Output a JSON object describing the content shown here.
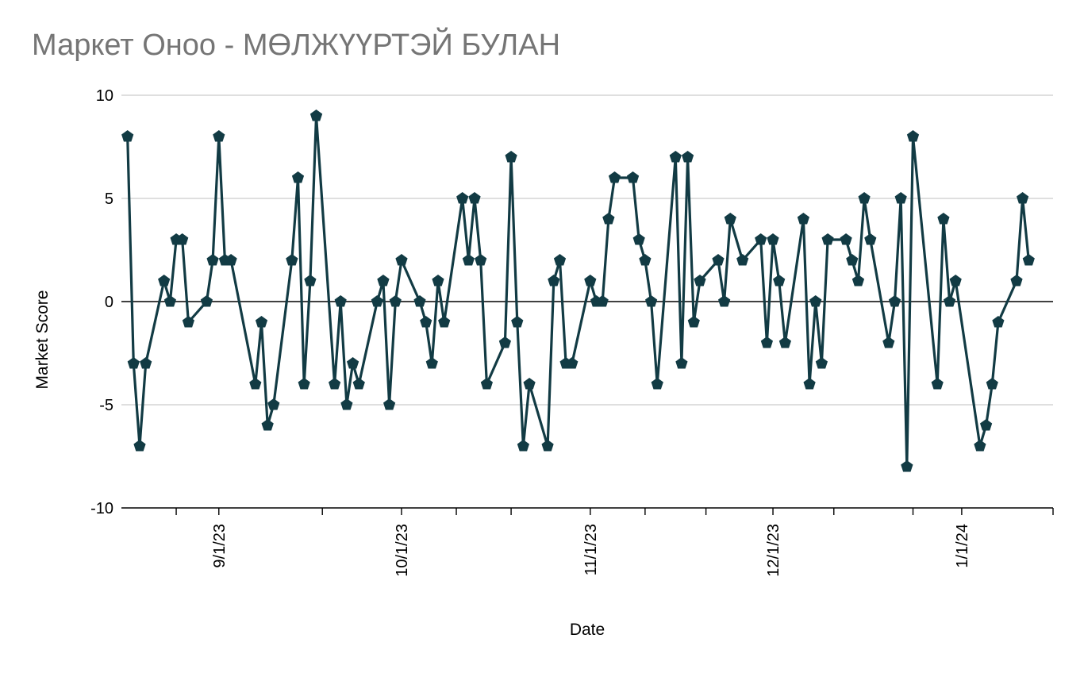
{
  "chart_data": {
    "type": "line",
    "title": "Маркет Оноо - МӨЛЖҮҮРТЭЙ БУЛАН",
    "xlabel": "Date",
    "ylabel": "Market Score",
    "ylim": [
      -10,
      10
    ],
    "yticks": [
      10,
      5,
      0,
      -5,
      -10
    ],
    "xlim": [
      "2023-08-16",
      "2024-01-16"
    ],
    "xticks": [
      {
        "date": "2023-09-01",
        "label": "9/1/23"
      },
      {
        "date": "2023-10-01",
        "label": "10/1/23"
      },
      {
        "date": "2023-11-01",
        "label": "11/1/23"
      },
      {
        "date": "2023-12-01",
        "label": "12/1/23"
      },
      {
        "date": "2024-01-01",
        "label": "1/1/24"
      }
    ],
    "grid": true,
    "legend": "none",
    "colors": {
      "line": "#123b44",
      "marker": "#123b44",
      "grid": "#cccccc",
      "zero_line": "#000000",
      "title": "#757575"
    },
    "marker": "pentagon",
    "series": [
      {
        "points": [
          {
            "x": "2023-08-17",
            "y": 8
          },
          {
            "x": "2023-08-18",
            "y": -3
          },
          {
            "x": "2023-08-19",
            "y": -7
          },
          {
            "x": "2023-08-20",
            "y": -3
          },
          {
            "x": "2023-08-23",
            "y": 1
          },
          {
            "x": "2023-08-24",
            "y": 0
          },
          {
            "x": "2023-08-25",
            "y": 3
          },
          {
            "x": "2023-08-26",
            "y": 3
          },
          {
            "x": "2023-08-27",
            "y": -1
          },
          {
            "x": "2023-08-30",
            "y": 0
          },
          {
            "x": "2023-08-31",
            "y": 2
          },
          {
            "x": "2023-09-01",
            "y": 8
          },
          {
            "x": "2023-09-02",
            "y": 2
          },
          {
            "x": "2023-09-03",
            "y": 2
          },
          {
            "x": "2023-09-07",
            "y": -4
          },
          {
            "x": "2023-09-08",
            "y": -1
          },
          {
            "x": "2023-09-09",
            "y": -6
          },
          {
            "x": "2023-09-10",
            "y": -5
          },
          {
            "x": "2023-09-13",
            "y": 2
          },
          {
            "x": "2023-09-14",
            "y": 6
          },
          {
            "x": "2023-09-15",
            "y": -4
          },
          {
            "x": "2023-09-16",
            "y": 1
          },
          {
            "x": "2023-09-17",
            "y": 9
          },
          {
            "x": "2023-09-20",
            "y": -4
          },
          {
            "x": "2023-09-21",
            "y": 0
          },
          {
            "x": "2023-09-22",
            "y": -5
          },
          {
            "x": "2023-09-23",
            "y": -3
          },
          {
            "x": "2023-09-24",
            "y": -4
          },
          {
            "x": "2023-09-27",
            "y": 0
          },
          {
            "x": "2023-09-28",
            "y": 1
          },
          {
            "x": "2023-09-29",
            "y": -5
          },
          {
            "x": "2023-09-30",
            "y": 0
          },
          {
            "x": "2023-10-01",
            "y": 2
          },
          {
            "x": "2023-10-04",
            "y": 0
          },
          {
            "x": "2023-10-05",
            "y": -1
          },
          {
            "x": "2023-10-06",
            "y": -3
          },
          {
            "x": "2023-10-07",
            "y": 1
          },
          {
            "x": "2023-10-08",
            "y": -1
          },
          {
            "x": "2023-10-11",
            "y": 5
          },
          {
            "x": "2023-10-12",
            "y": 2
          },
          {
            "x": "2023-10-13",
            "y": 5
          },
          {
            "x": "2023-10-14",
            "y": 2
          },
          {
            "x": "2023-10-15",
            "y": -4
          },
          {
            "x": "2023-10-18",
            "y": -2
          },
          {
            "x": "2023-10-19",
            "y": 7
          },
          {
            "x": "2023-10-20",
            "y": -1
          },
          {
            "x": "2023-10-21",
            "y": -7
          },
          {
            "x": "2023-10-22",
            "y": -4
          },
          {
            "x": "2023-10-25",
            "y": -7
          },
          {
            "x": "2023-10-26",
            "y": 1
          },
          {
            "x": "2023-10-27",
            "y": 2
          },
          {
            "x": "2023-10-28",
            "y": -3
          },
          {
            "x": "2023-10-29",
            "y": -3
          },
          {
            "x": "2023-11-01",
            "y": 1
          },
          {
            "x": "2023-11-02",
            "y": 0
          },
          {
            "x": "2023-11-03",
            "y": 0
          },
          {
            "x": "2023-11-04",
            "y": 4
          },
          {
            "x": "2023-11-05",
            "y": 6
          },
          {
            "x": "2023-11-08",
            "y": 6
          },
          {
            "x": "2023-11-09",
            "y": 3
          },
          {
            "x": "2023-11-10",
            "y": 2
          },
          {
            "x": "2023-11-11",
            "y": 0
          },
          {
            "x": "2023-11-12",
            "y": -4
          },
          {
            "x": "2023-11-15",
            "y": 7
          },
          {
            "x": "2023-11-16",
            "y": -3
          },
          {
            "x": "2023-11-17",
            "y": 7
          },
          {
            "x": "2023-11-18",
            "y": -1
          },
          {
            "x": "2023-11-19",
            "y": 1
          },
          {
            "x": "2023-11-22",
            "y": 2
          },
          {
            "x": "2023-11-23",
            "y": 0
          },
          {
            "x": "2023-11-24",
            "y": 4
          },
          {
            "x": "2023-11-26",
            "y": 2
          },
          {
            "x": "2023-11-29",
            "y": 3
          },
          {
            "x": "2023-11-30",
            "y": -2
          },
          {
            "x": "2023-12-01",
            "y": 3
          },
          {
            "x": "2023-12-02",
            "y": 1
          },
          {
            "x": "2023-12-03",
            "y": -2
          },
          {
            "x": "2023-12-06",
            "y": 4
          },
          {
            "x": "2023-12-07",
            "y": -4
          },
          {
            "x": "2023-12-08",
            "y": 0
          },
          {
            "x": "2023-12-09",
            "y": -3
          },
          {
            "x": "2023-12-10",
            "y": 3
          },
          {
            "x": "2023-12-13",
            "y": 3
          },
          {
            "x": "2023-12-14",
            "y": 2
          },
          {
            "x": "2023-12-15",
            "y": 1
          },
          {
            "x": "2023-12-16",
            "y": 5
          },
          {
            "x": "2023-12-17",
            "y": 3
          },
          {
            "x": "2023-12-20",
            "y": -2
          },
          {
            "x": "2023-12-21",
            "y": 0
          },
          {
            "x": "2023-12-22",
            "y": 5
          },
          {
            "x": "2023-12-23",
            "y": -8
          },
          {
            "x": "2023-12-24",
            "y": 8
          },
          {
            "x": "2023-12-28",
            "y": -4
          },
          {
            "x": "2023-12-29",
            "y": 4
          },
          {
            "x": "2023-12-30",
            "y": 0
          },
          {
            "x": "2023-12-31",
            "y": 1
          },
          {
            "x": "2024-01-04",
            "y": -7
          },
          {
            "x": "2024-01-05",
            "y": -6
          },
          {
            "x": "2024-01-06",
            "y": -4
          },
          {
            "x": "2024-01-07",
            "y": -1
          },
          {
            "x": "2024-01-10",
            "y": 1
          },
          {
            "x": "2024-01-11",
            "y": 5
          },
          {
            "x": "2024-01-12",
            "y": 2
          }
        ]
      }
    ]
  }
}
